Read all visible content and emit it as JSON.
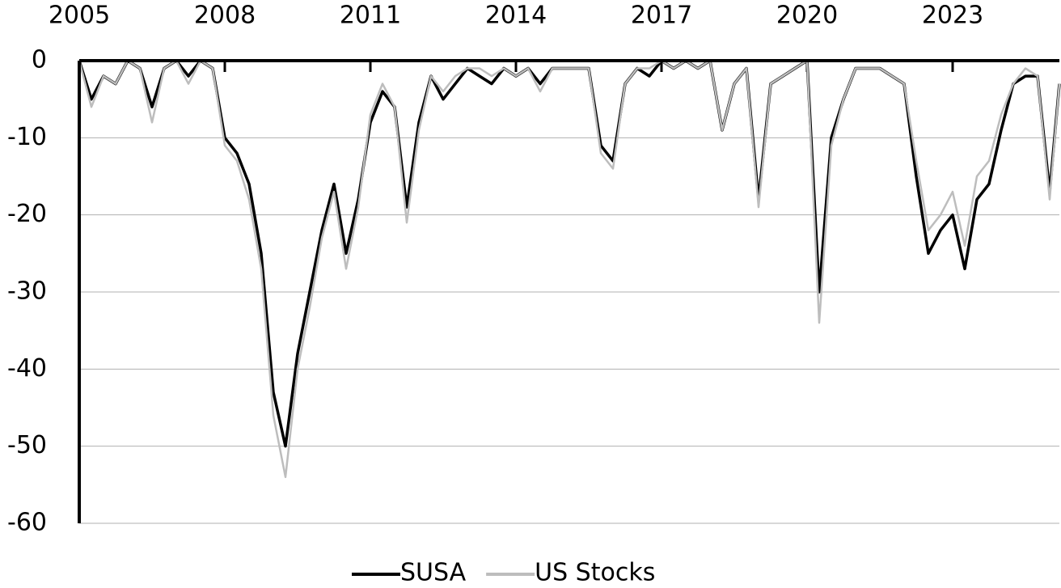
{
  "chart_data": {
    "type": "line",
    "x": [
      2005,
      2005.25,
      2005.5,
      2005.75,
      2006,
      2006.25,
      2006.5,
      2006.75,
      2007,
      2007.25,
      2007.5,
      2007.75,
      2008,
      2008.25,
      2008.5,
      2008.75,
      2009,
      2009.25,
      2009.5,
      2009.75,
      2010,
      2010.25,
      2010.5,
      2010.75,
      2011,
      2011.25,
      2011.5,
      2011.75,
      2012,
      2012.25,
      2012.5,
      2012.75,
      2013,
      2013.25,
      2013.5,
      2013.75,
      2014,
      2014.25,
      2014.5,
      2014.75,
      2015,
      2015.25,
      2015.5,
      2015.75,
      2016,
      2016.25,
      2016.5,
      2016.75,
      2017,
      2017.25,
      2017.5,
      2017.75,
      2018,
      2018.25,
      2018.5,
      2018.75,
      2019,
      2019.25,
      2019.5,
      2019.75,
      2020,
      2020.25,
      2020.5,
      2020.75,
      2021,
      2021.25,
      2021.5,
      2021.75,
      2022,
      2022.25,
      2022.5,
      2022.75,
      2023,
      2023.25,
      2023.5,
      2023.75,
      2024,
      2024.25,
      2024.5,
      2024.75,
      2025,
      2025.2
    ],
    "series": [
      {
        "name": "SUSA",
        "color": "#000000",
        "values": [
          0,
          -5,
          -2,
          -3,
          0,
          -1,
          -6,
          -1,
          0,
          -2,
          0,
          -1,
          -10,
          -12,
          -16,
          -25,
          -43,
          -50,
          -38,
          -30,
          -22,
          -16,
          -25,
          -18,
          -8,
          -4,
          -6,
          -19,
          -8,
          -2,
          -5,
          -3,
          -1,
          -2,
          -3,
          -1,
          -2,
          -1,
          -3,
          -1,
          -1,
          -1,
          -1,
          -11,
          -13,
          -3,
          -1,
          -2,
          0,
          -1,
          0,
          -1,
          0,
          -9,
          -3,
          -1,
          -18,
          -3,
          -2,
          -1,
          0,
          -30,
          -10,
          -5,
          -1,
          -1,
          -1,
          -2,
          -3,
          -15,
          -25,
          -22,
          -20,
          -27,
          -18,
          -16,
          -9,
          -3,
          -2,
          -2,
          -17,
          -3
        ]
      },
      {
        "name": "US Stocks",
        "color": "#bdbdbd",
        "values": [
          0,
          -6,
          -2,
          -3,
          0,
          -1,
          -8,
          -1,
          0,
          -3,
          0,
          -1,
          -11,
          -13,
          -18,
          -27,
          -46,
          -54,
          -40,
          -32,
          -23,
          -17,
          -27,
          -19,
          -7,
          -3,
          -6,
          -21,
          -9,
          -2,
          -4,
          -2,
          -1,
          -1,
          -2,
          -1,
          -2,
          -1,
          -4,
          -1,
          -1,
          -1,
          -1,
          -12,
          -14,
          -3,
          -1,
          -1,
          0,
          -1,
          0,
          -1,
          0,
          -9,
          -3,
          -1,
          -19,
          -3,
          -2,
          -1,
          0,
          -34,
          -11,
          -5,
          -1,
          -1,
          -1,
          -2,
          -3,
          -13,
          -22,
          -20,
          -17,
          -24,
          -15,
          -13,
          -7,
          -3,
          -1,
          -2,
          -18,
          -3
        ]
      }
    ],
    "xlim": [
      2005,
      2025.2
    ],
    "xticks": [
      2005,
      2008,
      2011,
      2014,
      2017,
      2020,
      2023
    ],
    "ylim": [
      -60,
      0
    ],
    "yticks": [
      0,
      -10,
      -20,
      -30,
      -40,
      -50,
      -60
    ],
    "grid": true,
    "legend": "bottom"
  }
}
